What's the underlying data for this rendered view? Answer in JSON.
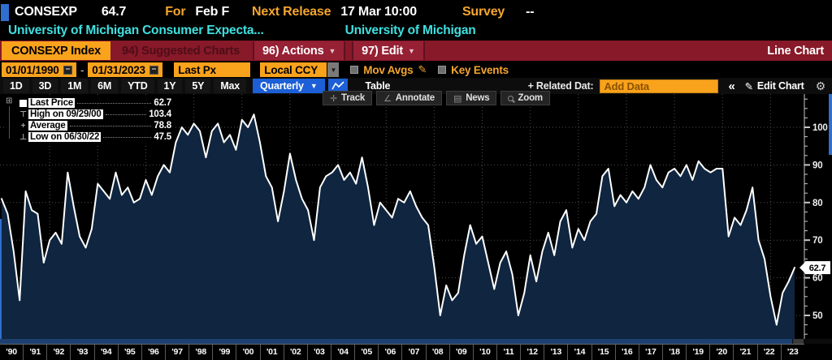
{
  "header": {
    "ticker": "CONSEXP",
    "last_value": "64.7",
    "for_label": "For",
    "for_value": "Feb F",
    "next_release_label": "Next Release",
    "next_release_value": "17 Mar 10:00",
    "survey_label": "Survey",
    "survey_value": "--",
    "description": "University of Michigan Consumer Expecta...",
    "source": "University of Michigan"
  },
  "menu_bar": {
    "security": "CONSEXP Index",
    "suggested_charts": "94) Suggested Charts",
    "actions": "96) Actions",
    "edit": "97) Edit",
    "chart_type": "Line Chart"
  },
  "toolbar": {
    "date_from": "01/01/1990",
    "date_to": "01/31/2023",
    "price_field": "Last Px",
    "currency": "Local CCY",
    "mov_avgs_label": "Mov Avgs",
    "key_events_label": "Key Events"
  },
  "range_bar": {
    "ranges": [
      "1D",
      "3D",
      "1M",
      "6M",
      "YTD",
      "1Y",
      "5Y",
      "Max"
    ],
    "period": "Quarterly",
    "table_label": "Table",
    "related_data_label": "+ Related Dat:",
    "add_data_placeholder": "Add Data",
    "collapse_label": "«",
    "edit_chart_label": "Edit Chart"
  },
  "chart_tools": [
    {
      "icon": "track-icon",
      "label": "Track"
    },
    {
      "icon": "annotate-icon",
      "label": "Annotate"
    },
    {
      "icon": "news-icon",
      "label": "News"
    },
    {
      "icon": "zoom-icon",
      "label": "Zoom"
    }
  ],
  "legend": {
    "rows": [
      {
        "icon": "last-price-swatch",
        "label": "Last Price",
        "value": "62.7"
      },
      {
        "icon": "high-marker",
        "label": "High on 09/29/00",
        "value": "103.4"
      },
      {
        "icon": "average-marker",
        "label": "Average",
        "value": "78.8"
      },
      {
        "icon": "low-marker",
        "label": "Low on 06/30/22",
        "value": "47.5"
      }
    ]
  },
  "colors": {
    "amber": "#f9a21c",
    "bar_red": "#871928",
    "selected_blue": "#1c5fd6",
    "cyan": "#3fe0e0",
    "orange_label": "#f5a62e",
    "area_fill": "#0f2540",
    "line": "#ffffff",
    "grid": "#4f4f4f"
  },
  "chart_data": {
    "type": "area",
    "title": "CONSEXP Index — University of Michigan Consumer Expectations",
    "frequency": "Quarterly",
    "start": "1990 Q1",
    "end": "2023 Q1",
    "x_labels": [
      "'90",
      "'91",
      "'92",
      "'93",
      "'94",
      "'95",
      "'96",
      "'97",
      "'98",
      "'99",
      "'00",
      "'01",
      "'02",
      "'03",
      "'04",
      "'05",
      "'06",
      "'07",
      "'08",
      "'09",
      "'10",
      "'11",
      "'12",
      "'13",
      "'14",
      "'15",
      "'16",
      "'17",
      "'18",
      "'19",
      "'20",
      "'21",
      "'22",
      "'23"
    ],
    "y_ticks": [
      50,
      60,
      70,
      80,
      90,
      100
    ],
    "ylim": [
      43.8,
      108.8
    ],
    "last_price": 62.7,
    "high": {
      "date": "09/29/00",
      "value": 103.4
    },
    "low": {
      "date": "06/30/22",
      "value": 47.5
    },
    "average": 78.8,
    "values": [
      81,
      77,
      67,
      54,
      83,
      78,
      77,
      64,
      70,
      72,
      69,
      88,
      79,
      71,
      68,
      73,
      85,
      83,
      81,
      88,
      82,
      84,
      80,
      81,
      86,
      82,
      87,
      90,
      88,
      96,
      100,
      98,
      101,
      99,
      92,
      99,
      101,
      96,
      98,
      94,
      102,
      100,
      103.4,
      96,
      87,
      84,
      75,
      83,
      93,
      86,
      81,
      78,
      70,
      84,
      87,
      88,
      90,
      86,
      88,
      85,
      92,
      84,
      74,
      80,
      78,
      76,
      81,
      80,
      83,
      79,
      76,
      74,
      63,
      50,
      58,
      54,
      56,
      66,
      74,
      69,
      71,
      64,
      57,
      64,
      67,
      61,
      50,
      56,
      66,
      59,
      67,
      72,
      66,
      75,
      78,
      68,
      73,
      70,
      75,
      77,
      87,
      89,
      79,
      82,
      80,
      83,
      81,
      84,
      90,
      86,
      84,
      88,
      89,
      87,
      90,
      86,
      91,
      89,
      88,
      89,
      89,
      71,
      76,
      74,
      78,
      84,
      70,
      65,
      55,
      47.5,
      56,
      59,
      62.7
    ]
  }
}
